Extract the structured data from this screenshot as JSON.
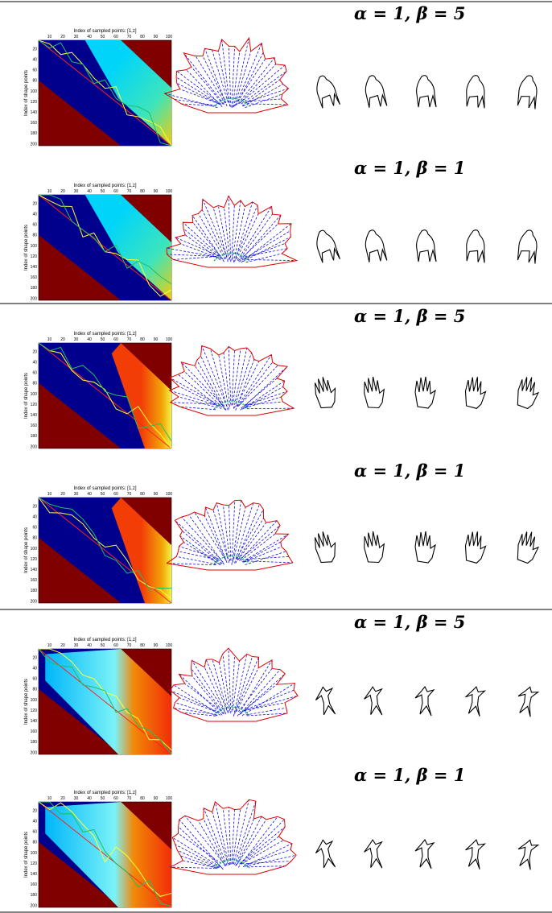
{
  "groups": [
    {
      "rows": [
        {
          "label": "α = 1, β = 5",
          "heatmap": {
            "title": "Index of sampled points: [1,z]",
            "ylabel": "Index of shape points",
            "xticks": [
              10,
              20,
              30,
              40,
              50,
              60,
              70,
              80,
              90,
              100
            ],
            "yticks": [
              20,
              40,
              60,
              80,
              100,
              120,
              140,
              160,
              180,
              200
            ]
          }
        },
        {
          "label": "α = 1, β = 1",
          "heatmap": {
            "title": "Index of sampled points: [1,z]",
            "ylabel": "Index of shape points",
            "xticks": [
              10,
              20,
              30,
              40,
              50,
              60,
              70,
              80,
              90,
              100
            ],
            "yticks": [
              20,
              40,
              60,
              80,
              100,
              120,
              140,
              160,
              180,
              200
            ]
          }
        }
      ]
    },
    {
      "rows": [
        {
          "label": "α = 1, β = 5",
          "heatmap": {
            "title": "Index of sampled points: [1,z]",
            "ylabel": "Index of shape points",
            "xticks": [
              10,
              20,
              30,
              40,
              50,
              60,
              70,
              80,
              90,
              100
            ],
            "yticks": [
              20,
              40,
              60,
              80,
              100,
              120,
              140,
              160,
              180,
              200
            ]
          }
        },
        {
          "label": "α = 1, β = 1",
          "heatmap": {
            "title": "Index of sampled points: [1,z]",
            "ylabel": "Index of shape points",
            "xticks": [
              10,
              20,
              30,
              40,
              50,
              60,
              70,
              80,
              90,
              100
            ],
            "yticks": [
              20,
              40,
              60,
              80,
              100,
              120,
              140,
              160,
              180,
              200
            ]
          }
        }
      ]
    },
    {
      "rows": [
        {
          "label": "α = 1, β = 5",
          "heatmap": {
            "title": "Index of sampled points: [1,z]",
            "ylabel": "Index of shape points",
            "xticks": [
              10,
              20,
              30,
              40,
              50,
              60,
              70,
              80,
              90,
              100
            ],
            "yticks": [
              20,
              40,
              60,
              80,
              100,
              120,
              140,
              160,
              180,
              200
            ]
          }
        },
        {
          "label": "α = 1, β = 1",
          "heatmap": {
            "title": "Index of sampled points: [1,z]",
            "ylabel": "Index of shape points",
            "xticks": [
              10,
              20,
              30,
              40,
              50,
              60,
              70,
              80,
              90,
              100
            ],
            "yticks": [
              20,
              40,
              60,
              80,
              100,
              120,
              140,
              160,
              180,
              200
            ]
          }
        }
      ]
    }
  ]
}
